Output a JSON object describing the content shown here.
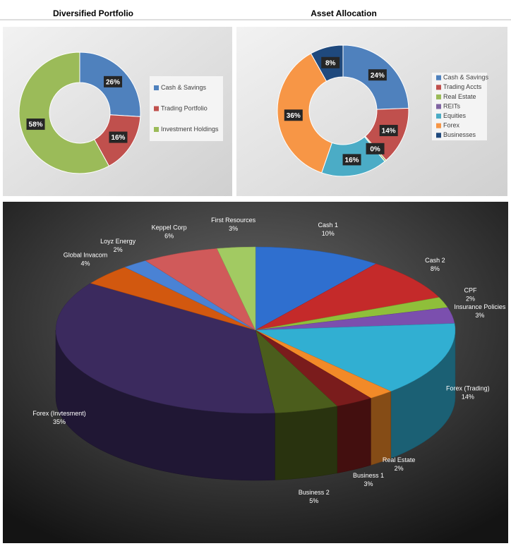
{
  "chart_data": [
    {
      "type": "donut",
      "title": "Diversified Portfolio",
      "categories": [
        "Cash & Savings",
        "Trading Portfolio",
        "Investment Holdings"
      ],
      "values": [
        26,
        16,
        58
      ],
      "value_labels": [
        "26%",
        "16%",
        "58%"
      ],
      "colors": [
        "#4f81bd",
        "#c0504d",
        "#9bbb59"
      ],
      "legend": "right"
    },
    {
      "type": "donut",
      "title": "Asset Allocation",
      "categories": [
        "Cash & Savings",
        "Trading Accts",
        "Real Estate",
        "REITs",
        "Equities",
        "Forex",
        "Businesses"
      ],
      "values": [
        24,
        14,
        0.4,
        0,
        16,
        36,
        8
      ],
      "value_labels": [
        "24%",
        "14%",
        "0%",
        null,
        "16%",
        "36%",
        "8%"
      ],
      "colors": [
        "#4f81bd",
        "#c0504d",
        "#9bbb59",
        "#8064a2",
        "#4bacc6",
        "#f79646",
        "#1f497d"
      ],
      "legend": "right"
    },
    {
      "type": "pie3d",
      "categories": [
        "Cash 1",
        "Cash 2",
        "CPF",
        "Insurance Policies",
        "Forex (Trading)",
        "Real Estate",
        "Business 1",
        "Business 2",
        "Forex (Invtesment)",
        "Global Invacom",
        "Loyz Energy",
        "Keppel Corp",
        "First Resources"
      ],
      "values": [
        10,
        8,
        2,
        3,
        14,
        2,
        3,
        5,
        35,
        4,
        2,
        6,
        3
      ],
      "value_labels": [
        "10%",
        "8%",
        "2%",
        "3%",
        "14%",
        "2%",
        "3%",
        "5%",
        "35%",
        "4%",
        "2%",
        "6%",
        "3%"
      ],
      "colors": [
        "#2f6fcf",
        "#c42a2a",
        "#8fbf3a",
        "#7b4fae",
        "#31afd2",
        "#f28a28",
        "#7a1c1c",
        "#4b5d1c",
        "#3b2a5e",
        "#d2580f",
        "#4a82d4",
        "#d05a5a",
        "#a2ca62"
      ]
    }
  ]
}
